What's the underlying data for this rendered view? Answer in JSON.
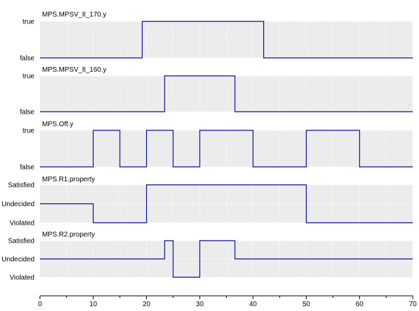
{
  "chart_data": {
    "type": "line",
    "style": {
      "band_color": "#ececec",
      "line_color": "#0a0a9a",
      "grid_color": "#ffffff",
      "axis_color": "#000000"
    },
    "x_axis": {
      "range": [
        0,
        70
      ],
      "ticks": [
        0,
        10,
        20,
        30,
        40,
        50,
        60,
        70
      ],
      "tick_labels": [
        "0",
        "10",
        "20",
        "30",
        "40",
        "50",
        "60",
        "70"
      ],
      "minor_step": 5
    },
    "panels": [
      {
        "title": "MPS.MPSV_lt_170.y",
        "levels": [
          "false",
          "true"
        ],
        "steps": [
          [
            0,
            "false"
          ],
          [
            19.2,
            "true"
          ],
          [
            42,
            "false"
          ],
          [
            70,
            "false"
          ]
        ]
      },
      {
        "title": "MPS.MPSV_lt_160.y",
        "levels": [
          "false",
          "true"
        ],
        "steps": [
          [
            0,
            "false"
          ],
          [
            23.4,
            "true"
          ],
          [
            36.6,
            "false"
          ],
          [
            70,
            "false"
          ]
        ]
      },
      {
        "title": "MPS.Off.y",
        "levels": [
          "false",
          "true"
        ],
        "steps": [
          [
            0,
            "false"
          ],
          [
            10,
            "true"
          ],
          [
            15,
            "false"
          ],
          [
            20,
            "true"
          ],
          [
            25,
            "false"
          ],
          [
            30,
            "true"
          ],
          [
            40,
            "false"
          ],
          [
            50,
            "true"
          ],
          [
            60,
            "false"
          ],
          [
            70,
            "false"
          ]
        ]
      },
      {
        "title": "MPS.R1.property",
        "levels": [
          "Violated",
          "Undecided",
          "Satisfied"
        ],
        "steps": [
          [
            0,
            "Undecided"
          ],
          [
            10,
            "Violated"
          ],
          [
            20,
            "Satisfied"
          ],
          [
            50,
            "Violated"
          ],
          [
            70,
            "Violated"
          ]
        ]
      },
      {
        "title": "MPS.R2.property",
        "levels": [
          "Violated",
          "Undecided",
          "Satisfied"
        ],
        "steps": [
          [
            0,
            "Undecided"
          ],
          [
            23.4,
            "Satisfied"
          ],
          [
            25,
            "Violated"
          ],
          [
            30,
            "Satisfied"
          ],
          [
            36.6,
            "Undecided"
          ],
          [
            70,
            "Undecided"
          ]
        ]
      }
    ]
  }
}
